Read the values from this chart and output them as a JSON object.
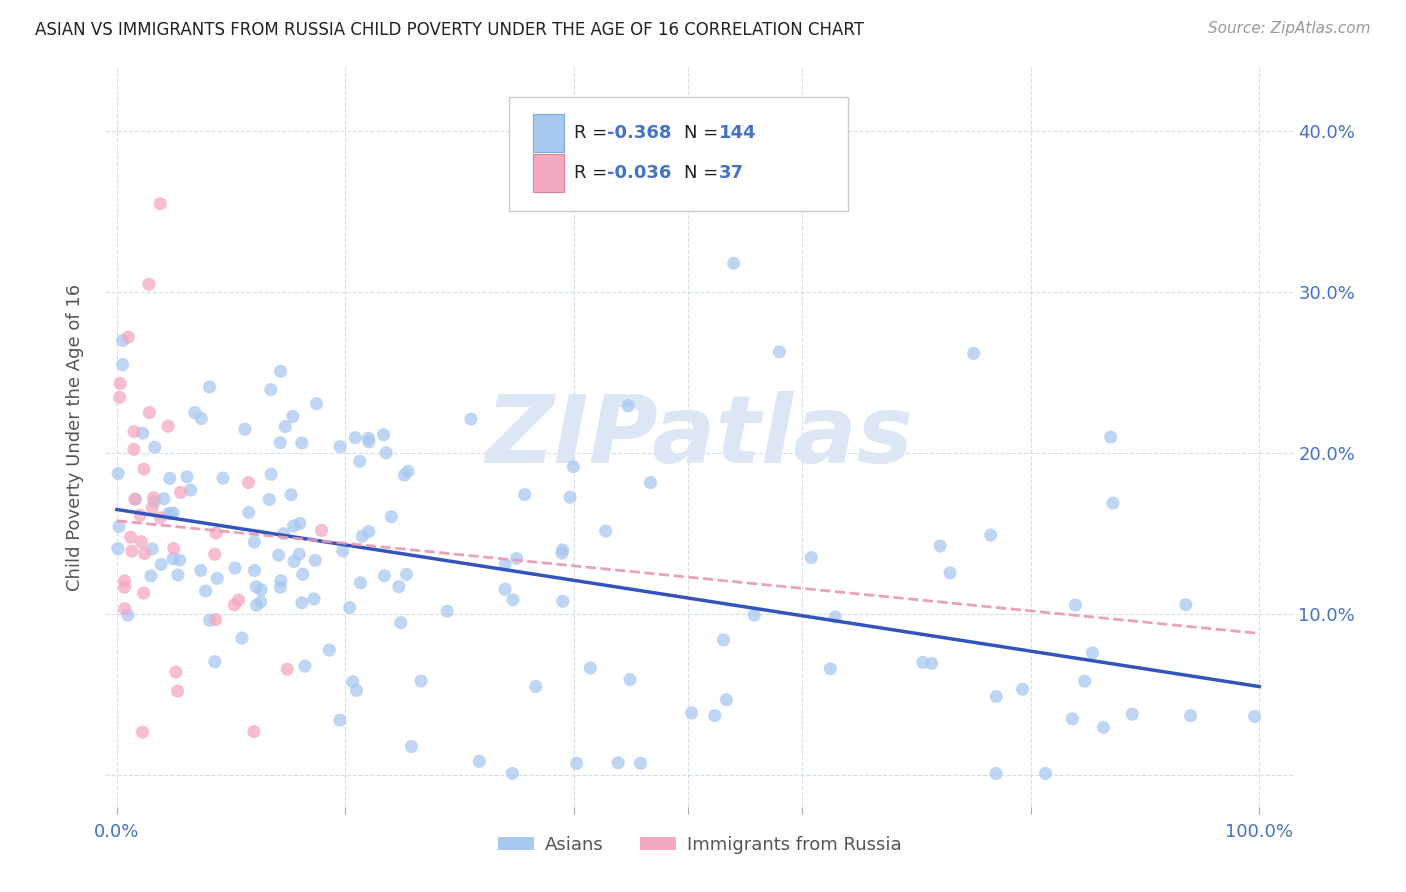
{
  "title": "ASIAN VS IMMIGRANTS FROM RUSSIA CHILD POVERTY UNDER THE AGE OF 16 CORRELATION CHART",
  "source": "Source: ZipAtlas.com",
  "ylabel": "Child Poverty Under the Age of 16",
  "asian_color": "#a8c8f0",
  "asian_edge_color": "#7aaad8",
  "russia_color": "#f4a8c0",
  "russia_edge_color": "#e08090",
  "asian_line_color": "#3355bb",
  "russia_line_color": "#e898b0",
  "watermark_text": "ZIPatlas",
  "watermark_color": "#dce6f5",
  "axis_tick_color": "#4472c4",
  "ylabel_color": "#555555",
  "title_color": "#222222",
  "source_color": "#999999",
  "legend_border_color": "#cccccc",
  "legend_text_color": "#222222",
  "legend_R_color": "#4472c4",
  "legend_N_color": "#4472c4",
  "asian_R": "-0.368",
  "asian_N": "144",
  "russia_R": "-0.036",
  "russia_N": "37",
  "asian_line_x0": 0.0,
  "asian_line_x1": 1.0,
  "asian_line_y0": 0.165,
  "asian_line_y1": 0.055,
  "russia_line_x0": 0.0,
  "russia_line_x1": 1.0,
  "russia_line_y0": 0.158,
  "russia_line_y1": 0.088,
  "xlim_min": -0.01,
  "xlim_max": 1.03,
  "ylim_min": -0.02,
  "ylim_max": 0.44,
  "yticks": [
    0.0,
    0.1,
    0.2,
    0.3,
    0.4
  ],
  "ytick_labels_right": [
    "",
    "10.0%",
    "20.0%",
    "30.0%",
    "40.0%"
  ],
  "xtick_left": "0.0%",
  "xtick_right": "100.0%",
  "bottom_labels": [
    "Asians",
    "Immigrants from Russia"
  ],
  "grid_color": "#d0dcea",
  "scatter_size": 90,
  "scatter_alpha": 0.75
}
